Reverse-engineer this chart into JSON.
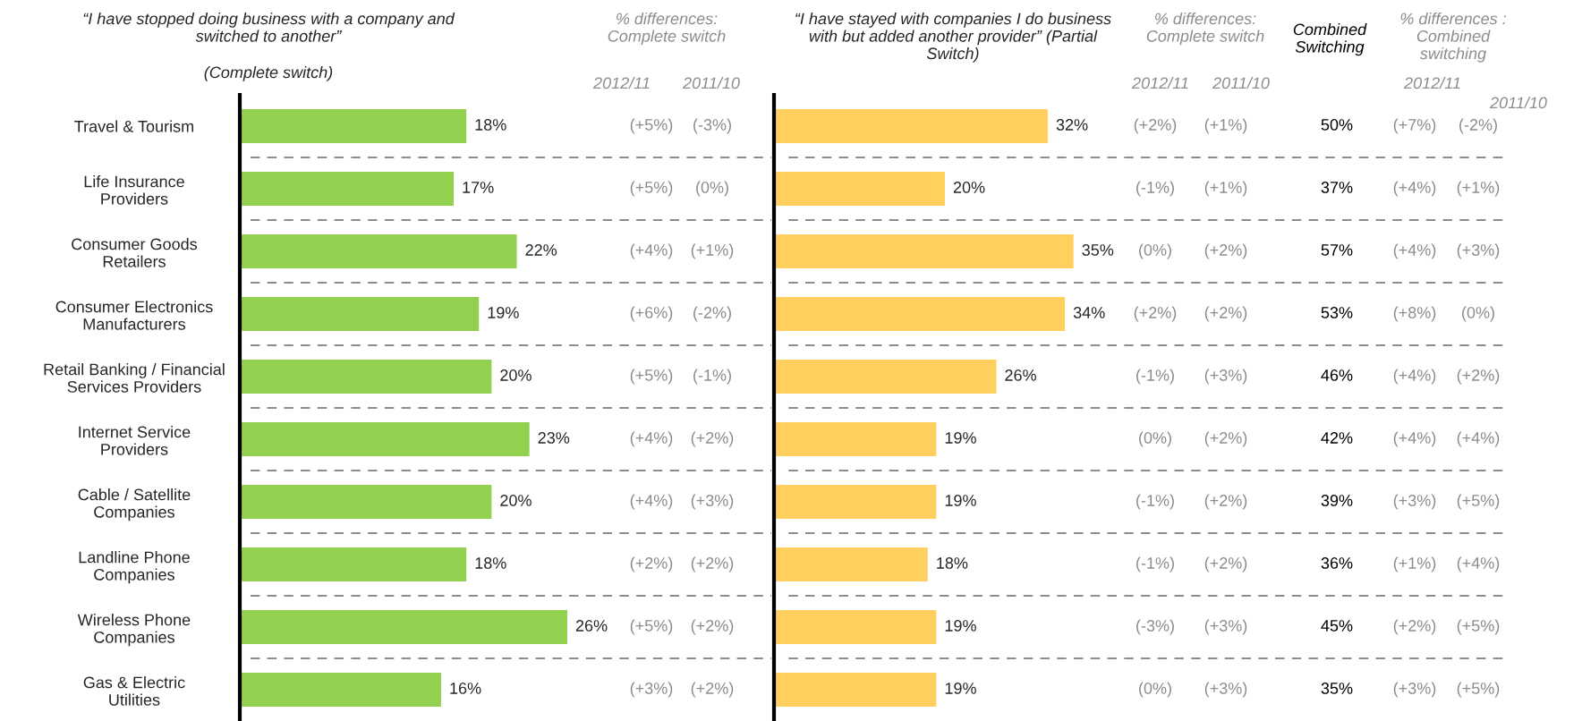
{
  "chart_data": [
    {
      "type": "bar",
      "orientation": "horizontal",
      "title": "“I have stopped doing business with a company and\nswitched to another”",
      "subtitle": "(Complete switch)",
      "categories": [
        "Travel & Tourism",
        "Life Insurance\nProviders",
        "Consumer Goods\nRetailers",
        "Consumer Electronics\nManufacturers",
        "Retail Banking / Financial\nServices Providers",
        "Internet Service\nProviders",
        "Cable / Satellite\nCompanies",
        "Landline Phone\nCompanies",
        "Wireless Phone\nCompanies",
        "Gas & Electric\nUtilities"
      ],
      "values": [
        18,
        17,
        22,
        19,
        20,
        23,
        20,
        18,
        26,
        16
      ],
      "value_labels": [
        "18%",
        "17%",
        "22%",
        "19%",
        "20%",
        "23%",
        "20%",
        "18%",
        "26%",
        "16%"
      ],
      "color": "#92d050",
      "grid": "y",
      "tick_labels": "y",
      "annotations": [
        "% differences:\nComplete switch",
        "2012/11",
        "2011/10",
        "(+5%)",
        "(-3%)",
        "(+5%)",
        "(0%)",
        "(+4%)",
        "(+1%)",
        "(+6%)",
        "(-2%)",
        "(+5%)",
        "(-1%)",
        "(+4%)",
        "(+2%)",
        "(+4%)",
        "(+3%)",
        "(+2%)",
        "(+2%)",
        "(+5%)",
        "(+2%)",
        "(+3%)",
        "(+2%)"
      ]
    },
    {
      "type": "bar",
      "orientation": "horizontal",
      "title": "“I have stayed with companies I do business\nwith but added another provider” (Partial\nSwitch)",
      "categories": [
        null,
        null,
        null,
        null,
        null,
        null,
        null,
        null,
        null,
        null
      ],
      "values": [
        32,
        20,
        35,
        34,
        26,
        19,
        19,
        18,
        19,
        19
      ],
      "value_labels": [
        "32%",
        "20%",
        "35%",
        "34%",
        "26%",
        "19%",
        "19%",
        "18%",
        "19%",
        "19%"
      ],
      "color": "#ffd05e",
      "grid": "y",
      "annotations": [
        "% differences:\nComplete switch",
        "2012/11",
        "2011/10",
        "Combined\nSwitching",
        "% differences :\nCombined\nswitching",
        "2012/11",
        "2011/10",
        "(+2%)",
        "(+1%)",
        "50%",
        "(+7%)",
        "(-2%)",
        "(-1%)",
        "(+1%)",
        "37%",
        "(+4%)",
        "(+1%)",
        "(0%)",
        "(+2%)",
        "57%",
        "(+4%)",
        "(+3%)",
        "(+2%)",
        "(+2%)",
        "53%",
        "(+8%)",
        "(0%)",
        "(-1%)",
        "(+3%)",
        "46%",
        "(+4%)",
        "(+2%)",
        "(0%)",
        "(+2%)",
        "42%",
        "(+4%)",
        "(+4%)",
        "(-1%)",
        "(+2%)",
        "39%",
        "(+3%)",
        "(+5%)",
        "(-1%)",
        "(+2%)",
        "36%",
        "(+1%)",
        "(+4%)",
        "(-3%)",
        "(+3%)",
        "45%",
        "(+2%)",
        "(+5%)",
        "(0%)",
        "(+3%)",
        "35%",
        "(+3%)",
        "(+5%)"
      ]
    }
  ]
}
